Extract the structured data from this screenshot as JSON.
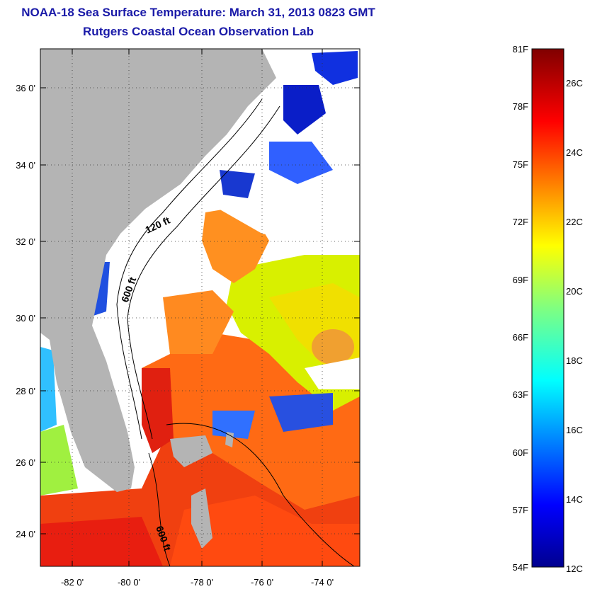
{
  "title": "NOAA-18 Sea Surface Temperature:  March 31, 2013 0823 GMT",
  "subtitle": "Rutgers Coastal Ocean Observation Lab",
  "map": {
    "lat_ticks": [
      "36 0'",
      "34 0'",
      "32 0'",
      "30 0'",
      "28 0'",
      "26 0'",
      "24 0'"
    ],
    "lon_ticks": [
      "-82 0'",
      "-80 0'",
      "-78 0'",
      "-76 0'",
      "-74 0'"
    ],
    "contour_labels": [
      "120 ft",
      "600 ft",
      "600 ft"
    ]
  },
  "colorbar": {
    "fahrenheit": [
      "81F",
      "78F",
      "75F",
      "72F",
      "69F",
      "66F",
      "63F",
      "60F",
      "57F",
      "54F"
    ],
    "celsius": [
      "26C",
      "24C",
      "22C",
      "20C",
      "18C",
      "16C",
      "14C",
      "12C"
    ]
  },
  "colors": {
    "title": "#1a1aa8",
    "land": "#b4b4b4",
    "cloud": "#ffffff"
  }
}
